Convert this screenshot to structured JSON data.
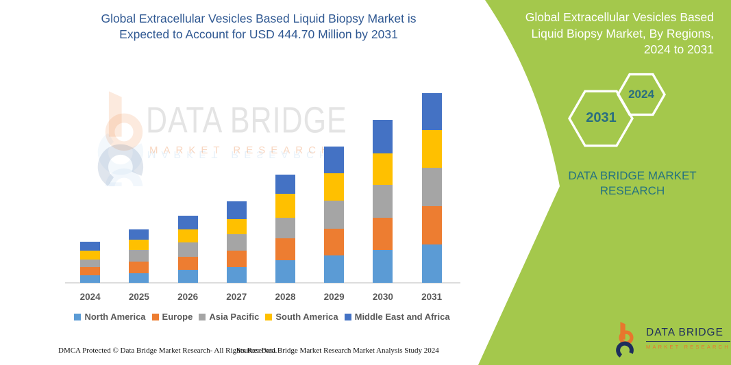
{
  "colors": {
    "panel_green": "#a4c84c",
    "title_blue": "#2f5892",
    "label_gray": "#595959",
    "teal_accent": "#26737f",
    "logo_navy": "#1d2d5c",
    "logo_orange": "#e8762d"
  },
  "header": {
    "line1": "Global Extracellular Vesicles Based Liquid Biopsy Market is",
    "line2": "Expected to Account for USD 444.70 Million by 2031"
  },
  "side_panel": {
    "title_lines": [
      "Global Extracellular Vesicles Based",
      "Liquid Biopsy Market, By Regions,",
      "2024 to 2031"
    ],
    "hexagons": [
      {
        "label": "2031"
      },
      {
        "label": "2024"
      }
    ],
    "brand_text": "DATA BRIDGE MARKET RESEARCH"
  },
  "watermark": {
    "text_top": "DATA BRIDGE",
    "text_bottom": "MARKET RESEARCH",
    "icon": "data-bridge-logo-mark"
  },
  "logo": {
    "icon": "data-bridge-logo-mark",
    "name": "DATA BRIDGE",
    "subtitle": "MARKET RESEARCH"
  },
  "chart_data": {
    "type": "bar",
    "stacked": true,
    "title": "Global Extracellular Vesicles Based Liquid Biopsy Market is Expected to Account for USD 444.70 Million by 2031",
    "unit": "USD Million",
    "labeled_total_2031": 444.7,
    "values_estimated_from_pixels": true,
    "grid": false,
    "y_axis_visible": false,
    "legend_position": "bottom",
    "ylim": [
      0,
      450
    ],
    "categories": [
      "2024",
      "2025",
      "2026",
      "2027",
      "2028",
      "2029",
      "2030",
      "2031"
    ],
    "series": [
      {
        "name": "North America",
        "color": "#5B9BD5",
        "values": [
          17.7,
          23.1,
          30.0,
          36.9,
          53.5,
          64.7,
          76.4,
          89.9
        ]
      },
      {
        "name": "Europe",
        "color": "#ED7D31",
        "values": [
          18.8,
          26.7,
          31.6,
          38.5,
          50.4,
          62.1,
          76.1,
          89.3
        ]
      },
      {
        "name": "Asia Pacific",
        "color": "#A5A5A5",
        "values": [
          18.8,
          26.8,
          32.6,
          39.0,
          48.2,
          66.3,
          76.4,
          89.9
        ]
      },
      {
        "name": "South America",
        "color": "#FFC000",
        "values": [
          19.7,
          24.1,
          30.5,
          34.8,
          56.7,
          63.7,
          75.0,
          88.3
        ]
      },
      {
        "name": "Middle East and Africa",
        "color": "#4472C4",
        "values": [
          21.3,
          24.1,
          33.2,
          41.3,
          45.4,
          62.0,
          78.7,
          87.3
        ]
      }
    ],
    "totals_by_year": [
      96.3,
      124.8,
      157.9,
      190.5,
      254.2,
      318.8,
      382.6,
      444.7
    ]
  },
  "footer": {
    "left": "DMCA Protected © Data Bridge Market Research-  All Rights Reserved.",
    "right": "Source: Data Bridge Market Research  Market Analysis Study 2024"
  }
}
